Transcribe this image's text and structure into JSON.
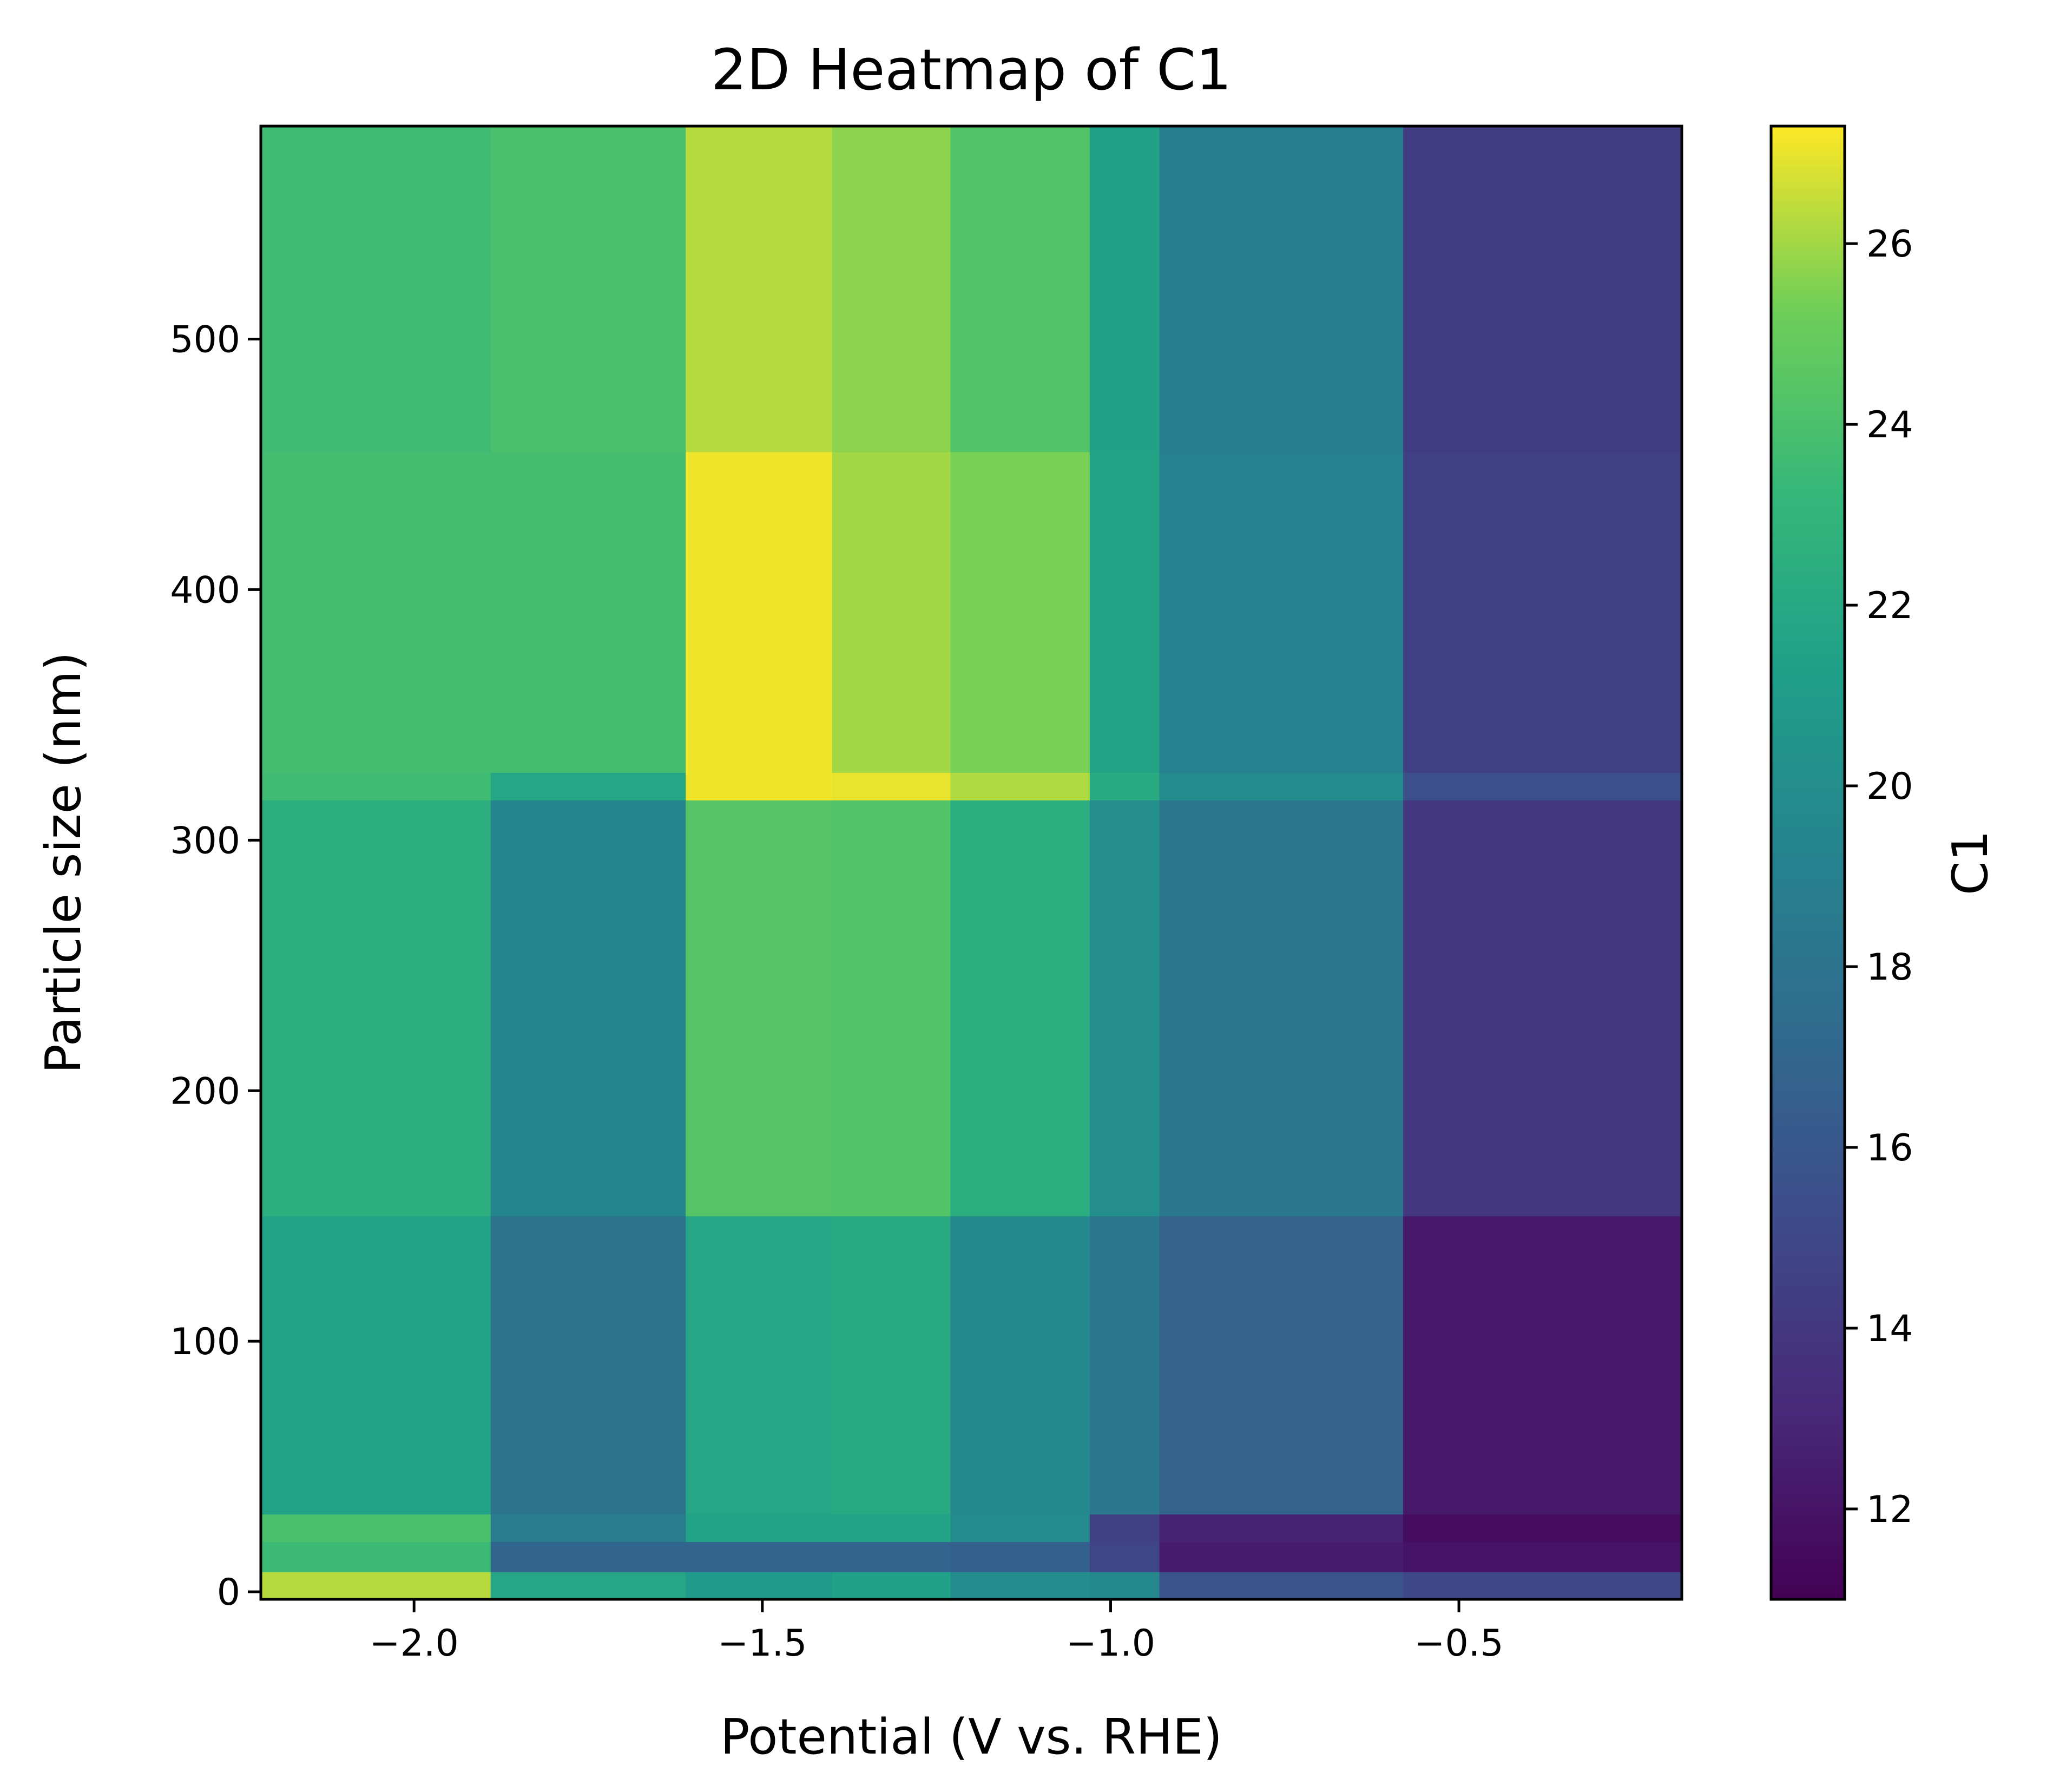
{
  "chart_data": {
    "type": "heatmap",
    "title": "2D Heatmap of C1",
    "xlabel": "Potential (V vs. RHE)",
    "ylabel": "Particle size (nm)",
    "colorbar_label": "C1",
    "colormap": "viridis",
    "xlim": [
      -2.22,
      -0.18
    ],
    "ylim": [
      -3,
      585
    ],
    "clim": [
      11.0,
      27.3
    ],
    "x_ticks": [
      -2.0,
      -1.5,
      -1.0,
      -0.5
    ],
    "x_tick_labels": [
      "−2.0",
      "−1.5",
      "−1.0",
      "−0.5"
    ],
    "y_ticks": [
      0,
      100,
      200,
      300,
      400,
      500
    ],
    "y_tick_labels": [
      "0",
      "100",
      "200",
      "300",
      "400",
      "500"
    ],
    "colorbar_ticks": [
      12,
      14,
      16,
      18,
      20,
      22,
      24,
      26
    ],
    "colorbar_tick_labels": [
      "12",
      "14",
      "16",
      "18",
      "20",
      "22",
      "24",
      "26"
    ],
    "x_edges": [
      -2.22,
      -1.89,
      -1.61,
      -1.4,
      -1.23,
      -1.03,
      -0.93,
      -0.58,
      -0.18
    ],
    "y_edges": [
      -3,
      8,
      20,
      31,
      150,
      316,
      327,
      455,
      585
    ],
    "values": [
      [
        26.3,
        21.8,
        20.9,
        21.4,
        19.9,
        19.6,
        15.7,
        15.0
      ],
      [
        23.5,
        16.9,
        16.9,
        16.9,
        16.6,
        14.9,
        12.4,
        12.0
      ],
      [
        24.0,
        18.6,
        21.5,
        21.5,
        19.8,
        14.5,
        12.8,
        11.6
      ],
      [
        21.5,
        18.0,
        21.8,
        22.1,
        19.6,
        18.3,
        16.8,
        12.2
      ],
      [
        22.5,
        19.4,
        24.4,
        24.3,
        22.4,
        20.0,
        18.3,
        14.0
      ],
      [
        23.6,
        21.8,
        27.1,
        27.0,
        26.2,
        22.2,
        19.8,
        15.5
      ],
      [
        23.8,
        23.8,
        27.1,
        26.0,
        25.4,
        21.6,
        19.0,
        14.5
      ],
      [
        23.6,
        24.0,
        26.3,
        25.7,
        24.3,
        21.4,
        18.9,
        14.3
      ]
    ]
  }
}
